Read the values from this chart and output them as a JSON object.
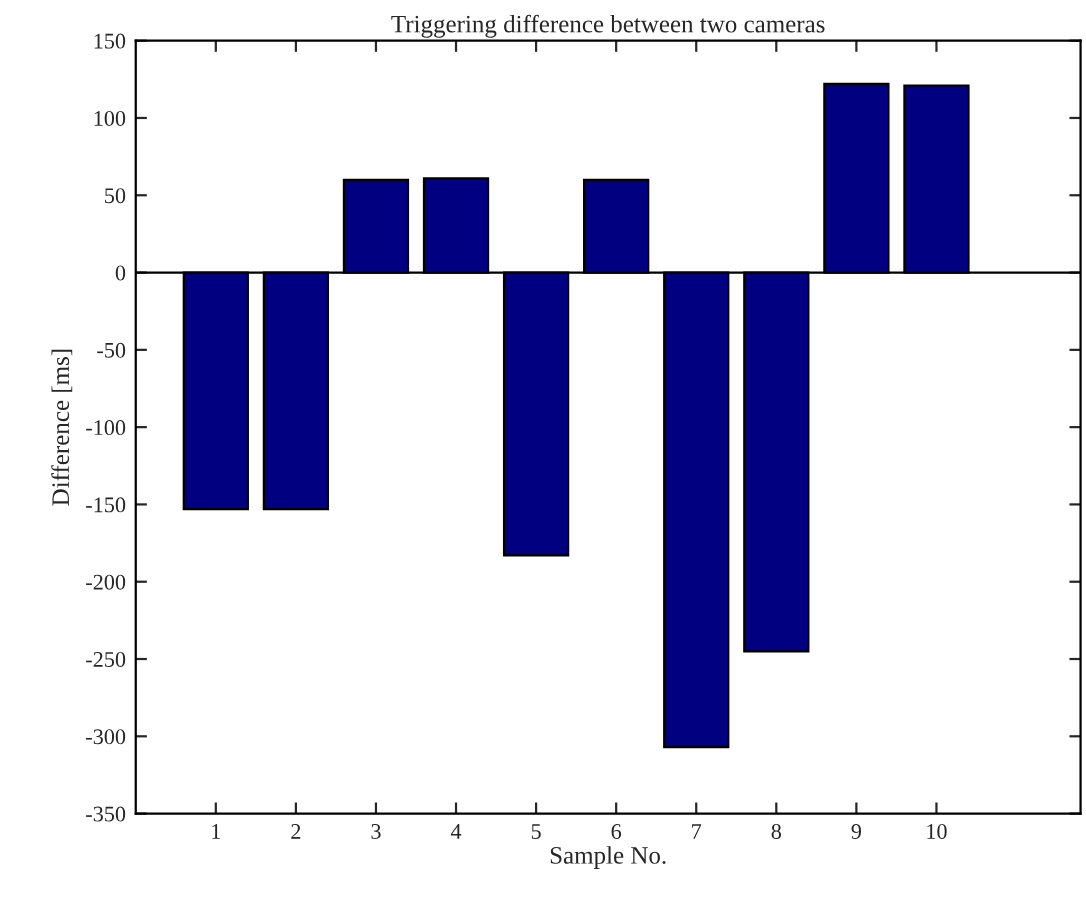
{
  "chart_data": {
    "type": "bar",
    "title": "Triggering difference between two cameras",
    "xlabel": "Sample No.",
    "ylabel": "Difference [ms]",
    "x": [
      1,
      2,
      3,
      4,
      5,
      6,
      7,
      8,
      9,
      10
    ],
    "values": [
      -153,
      -153,
      60,
      61,
      -183,
      60,
      -307,
      -245,
      122,
      121
    ],
    "color": "#000080",
    "xlim": [
      0,
      11.8
    ],
    "xticks": [
      1,
      2,
      3,
      4,
      5,
      6,
      7,
      8,
      9,
      10
    ],
    "ylim": [
      -350,
      150
    ],
    "yticks": [
      -350,
      -300,
      -250,
      -200,
      -150,
      -100,
      -50,
      0,
      50,
      100,
      150
    ],
    "ref_lines": [
      {
        "axis": "y",
        "value": 0,
        "color": "#000000"
      }
    ],
    "legend": false
  }
}
